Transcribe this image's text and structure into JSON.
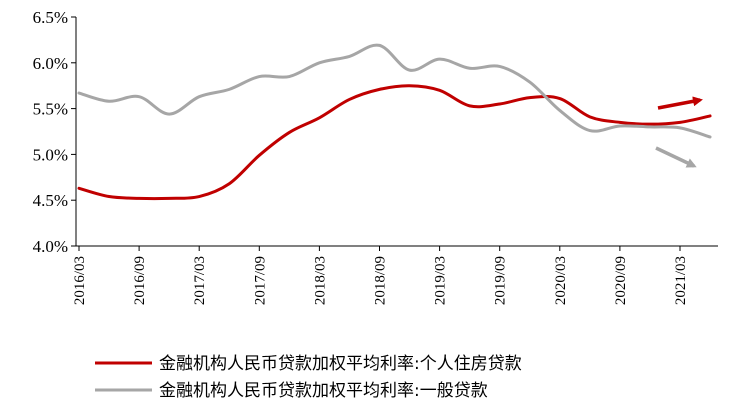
{
  "chart_data": {
    "type": "line",
    "x_ticks": [
      "2016/03",
      "2016/09",
      "2017/03",
      "2017/09",
      "2018/03",
      "2018/09",
      "2019/03",
      "2019/09",
      "2020/03",
      "2020/09",
      "2021/03"
    ],
    "ylim": [
      4.0,
      6.5
    ],
    "y_ticks": [
      "4.0%",
      "4.5%",
      "5.0%",
      "5.5%",
      "6.0%",
      "6.5%"
    ],
    "grid": false,
    "legend_position": "bottom",
    "series": [
      {
        "name": "金融机构人民币贷款加权平均利率:个人住房贷款",
        "color": "#c00000",
        "x": [
          "2016/03",
          "2016/06",
          "2016/09",
          "2016/12",
          "2017/03",
          "2017/06",
          "2017/09",
          "2017/12",
          "2018/03",
          "2018/06",
          "2018/09",
          "2018/12",
          "2019/03",
          "2019/06",
          "2019/09",
          "2019/12",
          "2020/03",
          "2020/06",
          "2020/09",
          "2020/12",
          "2021/03",
          "2021/06"
        ],
        "values": [
          4.63,
          4.54,
          4.52,
          4.52,
          4.54,
          4.68,
          4.99,
          5.24,
          5.4,
          5.6,
          5.71,
          5.75,
          5.7,
          5.53,
          5.55,
          5.62,
          5.61,
          5.41,
          5.35,
          5.33,
          5.35,
          5.42
        ]
      },
      {
        "name": "金融机构人民币贷款加权平均利率:一般贷款",
        "color": "#a6a6a6",
        "x": [
          "2016/03",
          "2016/06",
          "2016/09",
          "2016/12",
          "2017/03",
          "2017/06",
          "2017/09",
          "2017/12",
          "2018/03",
          "2018/06",
          "2018/09",
          "2018/12",
          "2019/03",
          "2019/06",
          "2019/09",
          "2019/12",
          "2020/03",
          "2020/06",
          "2020/09",
          "2020/12",
          "2021/03",
          "2021/06"
        ],
        "values": [
          5.67,
          5.58,
          5.63,
          5.44,
          5.63,
          5.71,
          5.85,
          5.85,
          6.0,
          6.07,
          6.19,
          5.92,
          6.04,
          5.94,
          5.96,
          5.79,
          5.48,
          5.26,
          5.31,
          5.3,
          5.29,
          5.19
        ]
      }
    ],
    "trend_arrows": [
      {
        "series": "金融机构人民币贷款加权平均利率:个人住房贷款",
        "direction": "up",
        "color": "#c00000"
      },
      {
        "series": "金融机构人民币贷款加权平均利率:一般贷款",
        "direction": "down",
        "color": "#a6a6a6"
      }
    ]
  }
}
